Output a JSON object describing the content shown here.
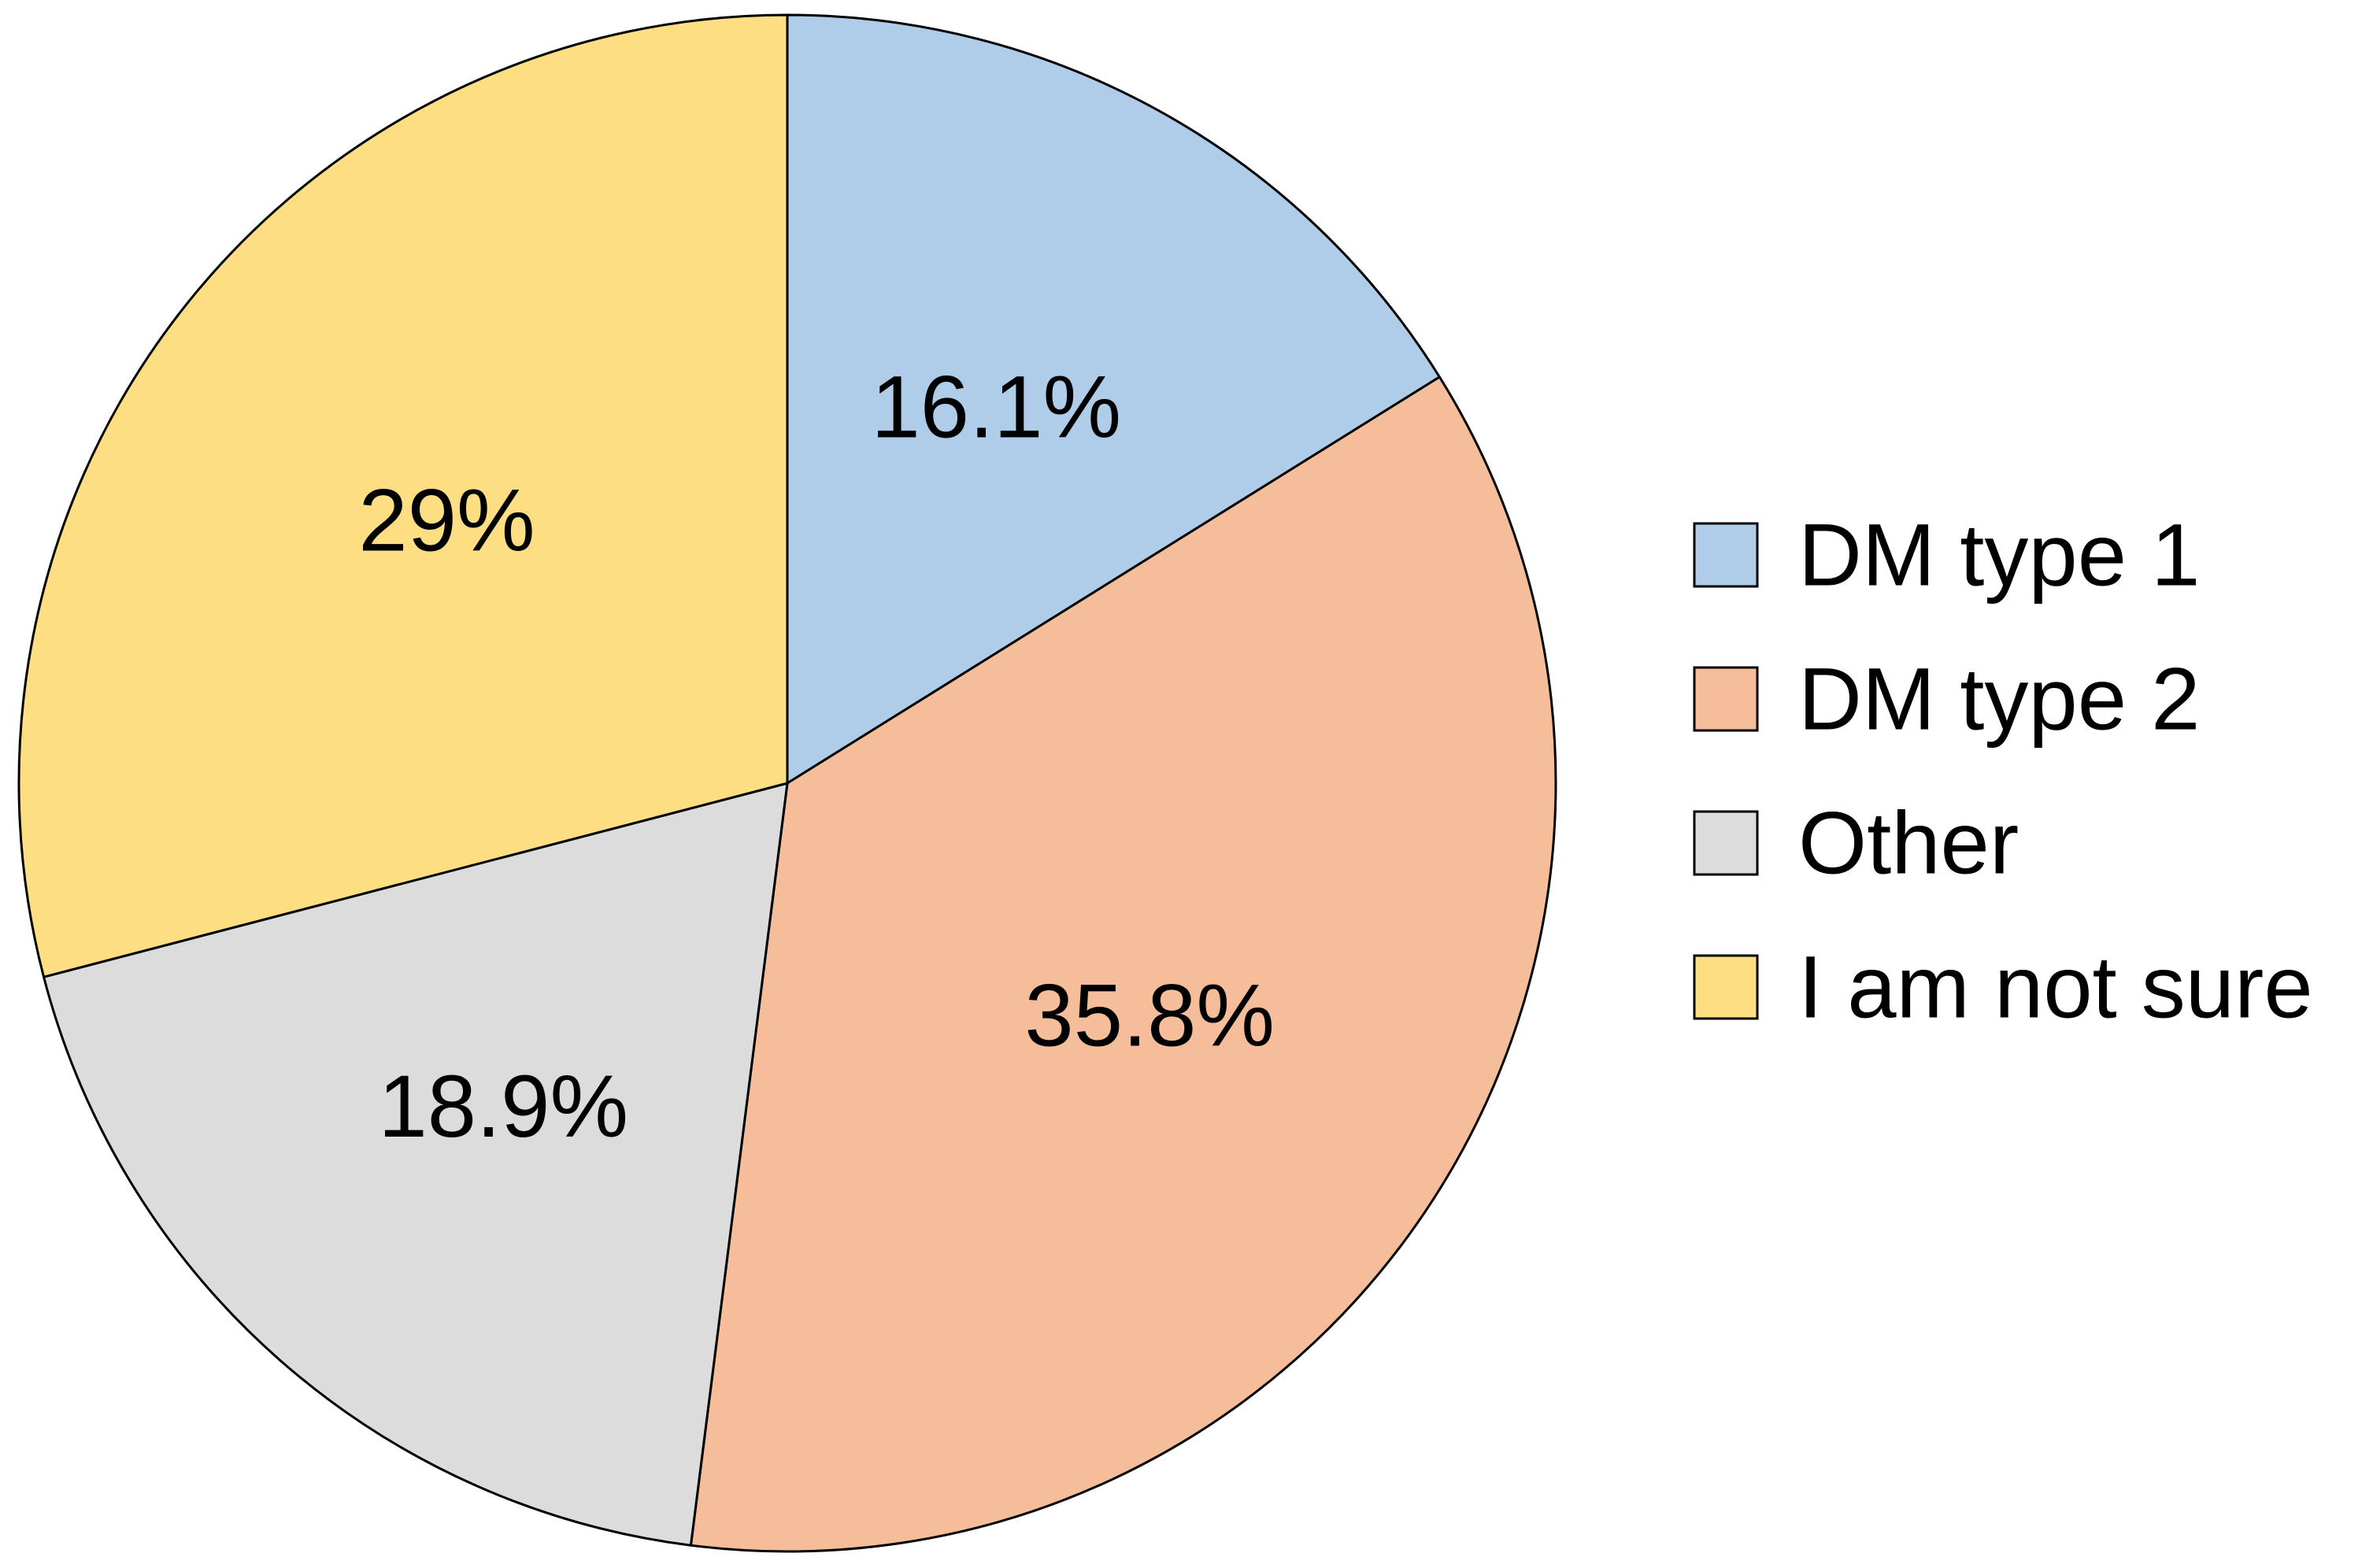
{
  "chart_data": {
    "type": "pie",
    "title": "",
    "start_angle_deg": 0,
    "direction": "clockwise",
    "legend_position": "right",
    "slices": [
      {
        "label": "DM type 1",
        "value": 16.1,
        "value_label": "16.1%",
        "color": "#AFCDE9"
      },
      {
        "label": "DM type 2",
        "value": 35.8,
        "value_label": "35.8%",
        "color": "#F5BD9A"
      },
      {
        "label": "Other",
        "value": 18.9,
        "value_label": "18.9%",
        "color": "#DCDCDC"
      },
      {
        "label": "I am not sure",
        "value": 29,
        "value_label": "29%",
        "color": "#FDDE83"
      }
    ],
    "outline_color": "#000000"
  }
}
